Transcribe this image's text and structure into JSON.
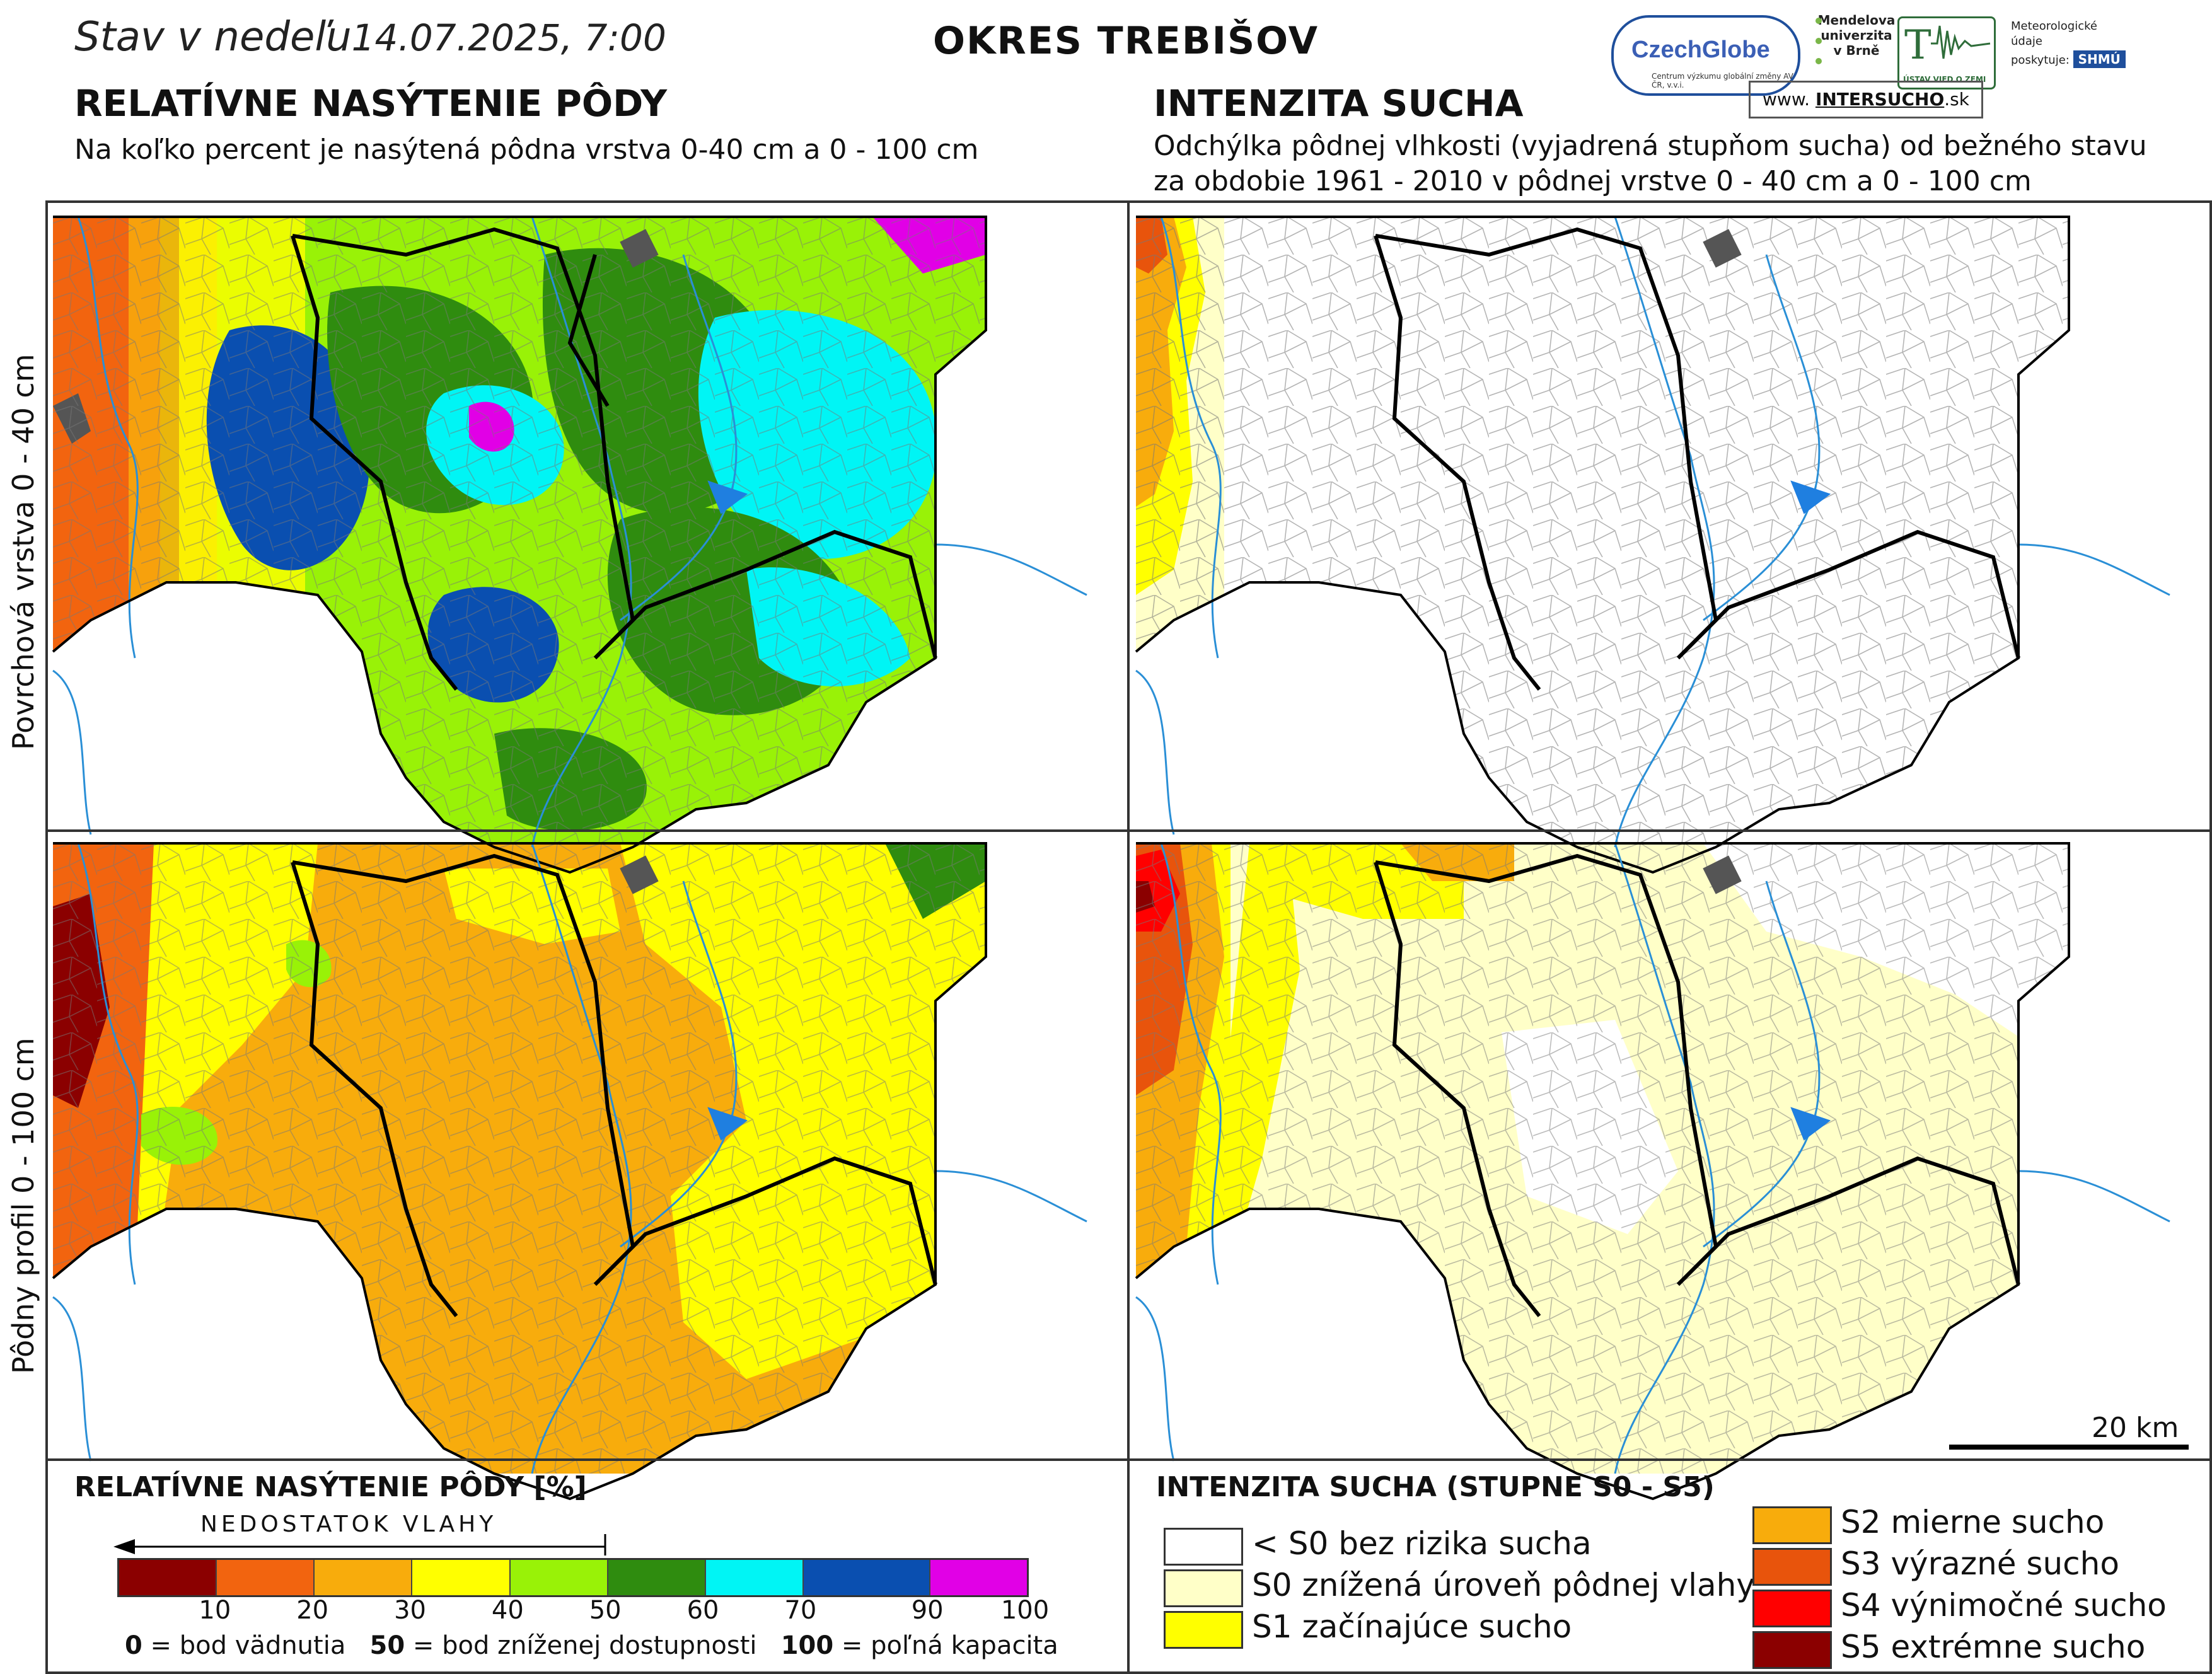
{
  "header": {
    "status_prefix": "Stav v nedeľu",
    "status_datetime": "14.07.2025, 7:00",
    "district": "OKRES  TREBIŠOV"
  },
  "left_panel": {
    "title": "RELATÍVNE NASÝTENIE PÔDY",
    "subtitle": "Na koľko percent je nasýtená pôdna vrstva 0-40 cm a 0 - 100 cm"
  },
  "right_panel": {
    "title": "INTENZITA SUCHA",
    "subtitle_line1": "Odchýlka pôdnej vlhkosti (vyjadrená stupňom sucha) od bežného stavu",
    "subtitle_line2": "za obdobie 1961 - 2010 v pôdnej vrstve 0 - 40 cm a 0 - 100 cm"
  },
  "logos": {
    "czechglobe": "CzechGlobe",
    "czechglobe_sub": "Centrum výzkumu globální změny AV ČR, v.v.i.",
    "mendel_line1": "Mendelova",
    "mendel_line2": "univerzita",
    "mendel_line3": "v Brně",
    "ustav": "ÚSTAV VIED O ZEMI",
    "shmu_text1": "Meteorologické",
    "shmu_text2": "údaje",
    "shmu_text3": "poskytuje:",
    "shmu_badge": "SHMÚ",
    "web_prefix": "www.",
    "web_brand": "INTERSUCHO",
    "web_suffix": ".sk"
  },
  "row_labels": {
    "top": "Povrchová vrstva 0 - 40 cm",
    "bottom": "Pôdny profil 0 - 100 cm"
  },
  "scale_bar": {
    "label": "20 km"
  },
  "legend_left": {
    "title": "RELATÍVNE NASÝTENIE PÔDY [%]",
    "arrow_label": "NEDOSTATOK VLAHY",
    "bins": [
      {
        "color": "#8b0000",
        "label": "10"
      },
      {
        "color": "#f2640f",
        "label": "20"
      },
      {
        "color": "#f8ac0c",
        "label": "30"
      },
      {
        "color": "#ffff00",
        "label": "40"
      },
      {
        "color": "#99f207",
        "label": "50"
      },
      {
        "color": "#2f8c0f",
        "label": "60"
      },
      {
        "color": "#00f5f5",
        "label": "70"
      },
      {
        "color": "#0a4fb0",
        "label": "90"
      },
      {
        "color": "#e100e6",
        "label": "100"
      }
    ],
    "note_0_key": "0",
    "note_0_text": " = bod vädnutia",
    "note_50_key": "50",
    "note_50_text": " = bod zníženej dostupnosti",
    "note_100_key": "100",
    "note_100_text": " = poľná kapacita"
  },
  "legend_right": {
    "title": "INTENZITA SUCHA (STUPNE S0 - S5)",
    "items": [
      {
        "color": "#ffffff",
        "label": "< S0 bez rizika sucha"
      },
      {
        "color": "#ffffc8",
        "label": "S0 znížená úroveň pôdnej vlahy"
      },
      {
        "color": "#ffff00",
        "label": "S1 začínajúce sucho"
      },
      {
        "color": "#f8ac0c",
        "label": "S2 mierne sucho"
      },
      {
        "color": "#e8540c",
        "label": "S3 výrazné sucho"
      },
      {
        "color": "#ff0000",
        "label": "S4 výnimočné sucho"
      },
      {
        "color": "#8b0000",
        "label": "S5 extrémne sucho"
      }
    ]
  },
  "colors": {
    "river": "#2a8fd6",
    "border": "#000000",
    "municipality": "#6a6a6a",
    "water": "#1f7fe0",
    "urban": "#555555"
  }
}
